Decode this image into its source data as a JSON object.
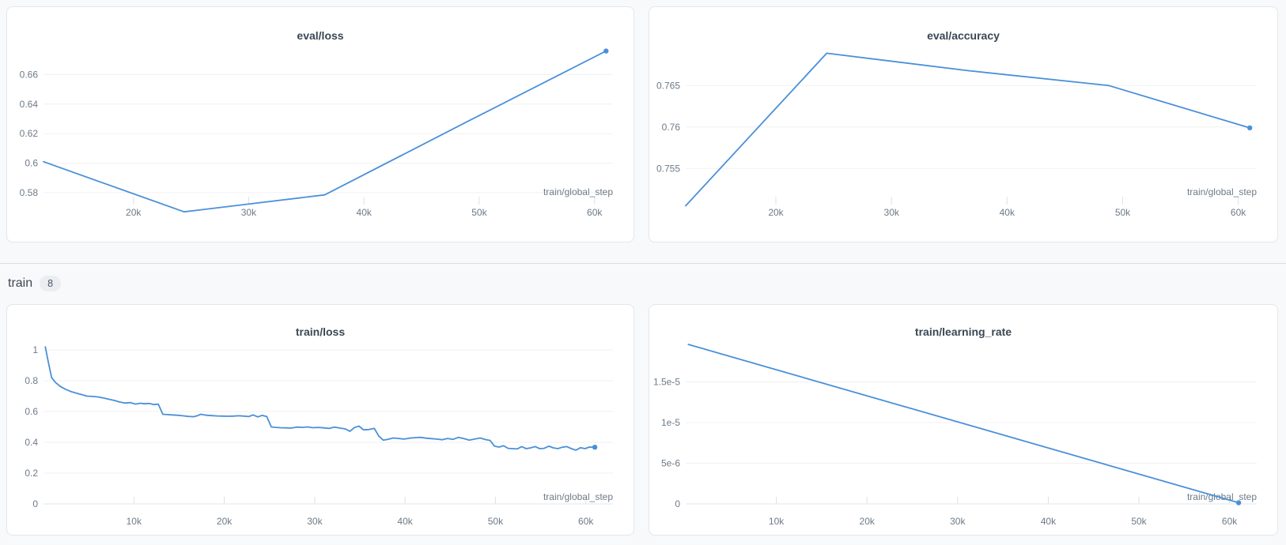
{
  "theme": {
    "page_background": "#f8f9fa",
    "card_background": "#ffffff",
    "card_border": "#e3e6e9",
    "accent_blue": "#4a90d9",
    "grid_color": "#f0f1f4",
    "axis_color": "#e2e5e9",
    "tick_color": "#dde1e6",
    "label_color": "#6e7a87",
    "title_color": "#3b4754"
  },
  "train_section": {
    "label": "train",
    "count": "8"
  },
  "chart_data": [
    {
      "id": "eval-loss",
      "type": "line",
      "title": "eval/loss",
      "xlabel": "train/global_step",
      "color": "#4a90d9",
      "end_dot": true,
      "grid": true,
      "legend": "none",
      "xlim": [
        12200,
        61600
      ],
      "ylim": [
        0.5655,
        0.679
      ],
      "x_ticks": [
        {
          "v": 20000,
          "label": "20k"
        },
        {
          "v": 30000,
          "label": "30k"
        },
        {
          "v": 40000,
          "label": "40k"
        },
        {
          "v": 50000,
          "label": "50k"
        },
        {
          "v": 60000,
          "label": "60k"
        }
      ],
      "y_ticks": [
        {
          "v": 0.58,
          "label": "0.58"
        },
        {
          "v": 0.6,
          "label": "0.6"
        },
        {
          "v": 0.62,
          "label": "0.62"
        },
        {
          "v": 0.64,
          "label": "0.64"
        },
        {
          "v": 0.66,
          "label": "0.66"
        }
      ],
      "x": [
        12200,
        24400,
        36600,
        48800,
        61000
      ],
      "y": [
        0.601,
        0.567,
        0.5785,
        0.6275,
        0.676
      ]
    },
    {
      "id": "eval-accuracy",
      "type": "line",
      "title": "eval/accuracy",
      "xlabel": "train/global_step",
      "color": "#4a90d9",
      "end_dot": true,
      "grid": true,
      "legend": "none",
      "xlim": [
        12200,
        61600
      ],
      "ylim": [
        0.7495,
        0.7697
      ],
      "x_ticks": [
        {
          "v": 20000,
          "label": "20k"
        },
        {
          "v": 30000,
          "label": "30k"
        },
        {
          "v": 40000,
          "label": "40k"
        },
        {
          "v": 50000,
          "label": "50k"
        },
        {
          "v": 60000,
          "label": "60k"
        }
      ],
      "y_ticks": [
        {
          "v": 0.755,
          "label": "0.755"
        },
        {
          "v": 0.76,
          "label": "0.76"
        },
        {
          "v": 0.765,
          "label": "0.765"
        }
      ],
      "x": [
        12200,
        24400,
        36600,
        48800,
        61000
      ],
      "y": [
        0.7505,
        0.7689,
        0.7668,
        0.765,
        0.7599
      ]
    },
    {
      "id": "train-loss",
      "type": "line",
      "title": "train/loss",
      "xlabel": "train/global_step",
      "color": "#4a90d9",
      "end_dot": true,
      "grid": true,
      "legend": "none",
      "xlim": [
        0,
        63000
      ],
      "ylim": [
        0,
        1.046
      ],
      "x_ticks": [
        {
          "v": 10000,
          "label": "10k"
        },
        {
          "v": 20000,
          "label": "20k"
        },
        {
          "v": 30000,
          "label": "30k"
        },
        {
          "v": 40000,
          "label": "40k"
        },
        {
          "v": 50000,
          "label": "50k"
        },
        {
          "v": 60000,
          "label": "60k"
        }
      ],
      "y_ticks": [
        {
          "v": 0,
          "label": "0"
        },
        {
          "v": 0.2,
          "label": "0.2"
        },
        {
          "v": 0.4,
          "label": "0.4"
        },
        {
          "v": 0.6,
          "label": "0.6"
        },
        {
          "v": 0.8,
          "label": "0.8"
        },
        {
          "v": 1,
          "label": "1"
        }
      ],
      "x": [
        200,
        500,
        900,
        1300,
        1800,
        2400,
        3000,
        3600,
        4200,
        4800,
        5400,
        6000,
        6600,
        7200,
        7800,
        8400,
        9000,
        9600,
        10200,
        10700,
        11200,
        11700,
        12200,
        12700,
        13200,
        13700,
        14200,
        14800,
        15400,
        16000,
        16600,
        17000,
        17400,
        18000,
        18600,
        19200,
        19800,
        20400,
        21000,
        21600,
        22200,
        22700,
        23200,
        23700,
        24200,
        24700,
        25200,
        25700,
        26200,
        26800,
        27400,
        28000,
        28600,
        29200,
        29800,
        30400,
        31000,
        31600,
        32200,
        32800,
        33400,
        33900,
        34400,
        34900,
        35400,
        36000,
        36600,
        37100,
        37600,
        38100,
        38700,
        39300,
        39900,
        40500,
        41100,
        41700,
        42300,
        42900,
        43500,
        44100,
        44700,
        45300,
        45900,
        46500,
        47100,
        47700,
        48300,
        48900,
        49400,
        49900,
        50400,
        50900,
        51400,
        51900,
        52400,
        52900,
        53400,
        53900,
        54400,
        54900,
        55400,
        55900,
        56400,
        56900,
        57400,
        57900,
        58400,
        58900,
        59400,
        59900,
        60400,
        61000
      ],
      "y": [
        1.02,
        0.93,
        0.82,
        0.79,
        0.765,
        0.745,
        0.73,
        0.72,
        0.71,
        0.7,
        0.698,
        0.695,
        0.688,
        0.68,
        0.672,
        0.662,
        0.655,
        0.658,
        0.648,
        0.654,
        0.65,
        0.652,
        0.645,
        0.648,
        0.582,
        0.58,
        0.578,
        0.576,
        0.572,
        0.568,
        0.566,
        0.572,
        0.582,
        0.576,
        0.573,
        0.571,
        0.57,
        0.569,
        0.57,
        0.572,
        0.57,
        0.567,
        0.578,
        0.565,
        0.575,
        0.567,
        0.5,
        0.497,
        0.495,
        0.494,
        0.492,
        0.499,
        0.497,
        0.5,
        0.495,
        0.497,
        0.494,
        0.49,
        0.499,
        0.492,
        0.487,
        0.471,
        0.496,
        0.505,
        0.481,
        0.483,
        0.49,
        0.44,
        0.414,
        0.419,
        0.428,
        0.425,
        0.421,
        0.427,
        0.43,
        0.432,
        0.427,
        0.424,
        0.421,
        0.417,
        0.425,
        0.419,
        0.432,
        0.424,
        0.414,
        0.421,
        0.428,
        0.418,
        0.412,
        0.375,
        0.369,
        0.378,
        0.361,
        0.359,
        0.357,
        0.372,
        0.359,
        0.364,
        0.372,
        0.359,
        0.361,
        0.375,
        0.364,
        0.359,
        0.368,
        0.372,
        0.359,
        0.349,
        0.365,
        0.359,
        0.369,
        0.368
      ]
    },
    {
      "id": "train-learning-rate",
      "type": "line",
      "title": "train/learning_rate",
      "xlabel": "train/global_step",
      "color": "#4a90d9",
      "end_dot": true,
      "grid": true,
      "legend": "none",
      "xlim": [
        0,
        63000
      ],
      "ylim": [
        0,
        1.98e-05
      ],
      "x_ticks": [
        {
          "v": 10000,
          "label": "10k"
        },
        {
          "v": 20000,
          "label": "20k"
        },
        {
          "v": 30000,
          "label": "30k"
        },
        {
          "v": 40000,
          "label": "40k"
        },
        {
          "v": 50000,
          "label": "50k"
        },
        {
          "v": 60000,
          "label": "60k"
        }
      ],
      "y_ticks": [
        {
          "v": 0,
          "label": "0"
        },
        {
          "v": 5e-06,
          "label": "5e-6"
        },
        {
          "v": 1e-05,
          "label": "1e-5"
        },
        {
          "v": 1.5e-05,
          "label": "1.5e-5"
        }
      ],
      "x": [
        300,
        61000
      ],
      "y": [
        1.96e-05,
        1.5e-07
      ]
    }
  ]
}
